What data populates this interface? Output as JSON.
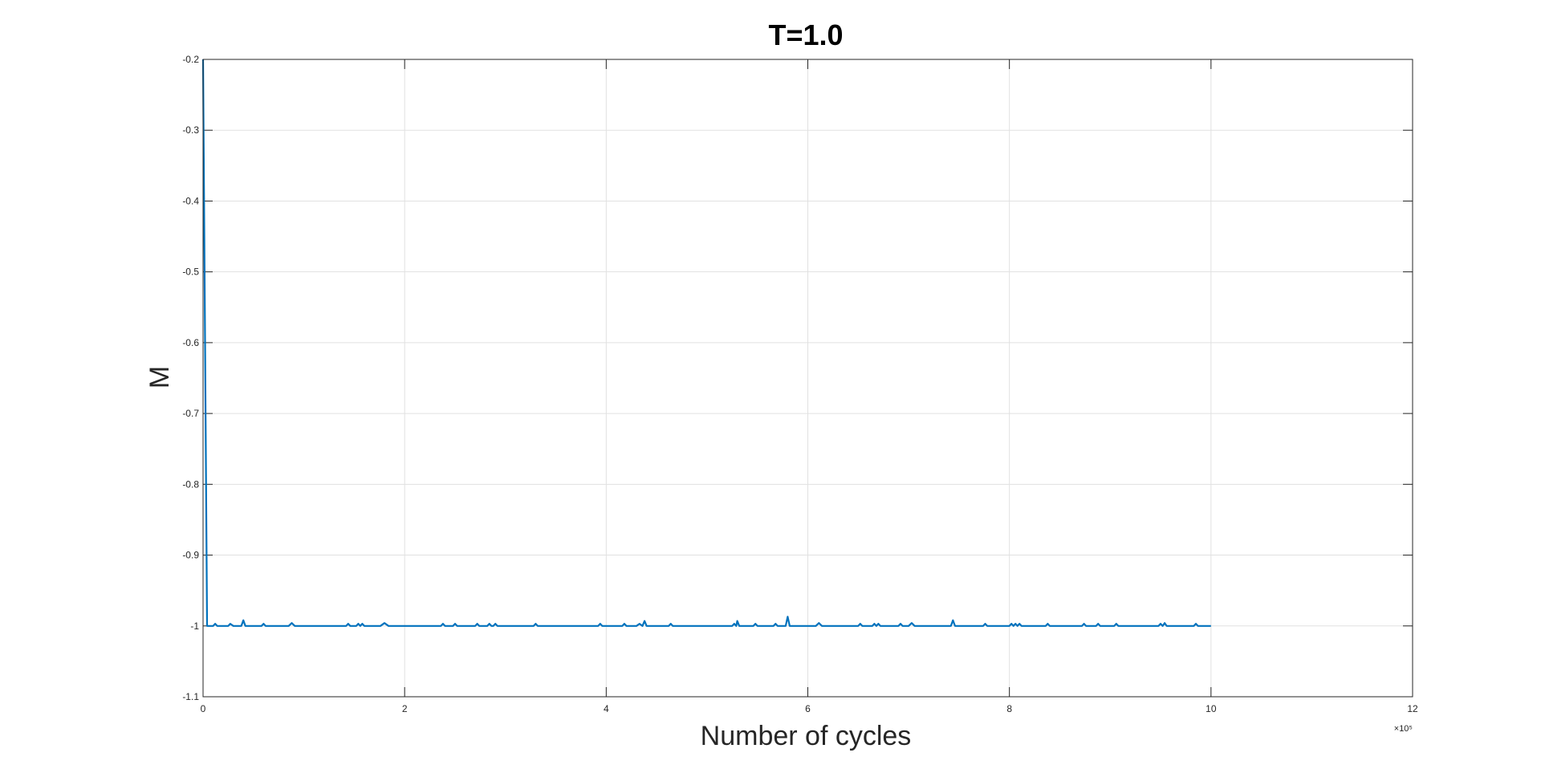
{
  "chart_data": {
    "type": "line",
    "title": "T=1.0",
    "xlabel": "Number of cycles",
    "ylabel": "M",
    "x_exponent_label": "×10⁵",
    "xlim": [
      0,
      12
    ],
    "ylim": [
      -1.1,
      -0.2
    ],
    "x_ticks": [
      0,
      2,
      4,
      6,
      8,
      10,
      12
    ],
    "x_tick_labels": [
      "0",
      "2",
      "4",
      "6",
      "8",
      "10",
      "12"
    ],
    "y_ticks": [
      -0.2,
      -0.3,
      -0.4,
      -0.5,
      -0.6,
      -0.7,
      -0.8,
      -0.9,
      -1,
      -1.1
    ],
    "y_tick_labels": [
      "-0.2",
      "-0.3",
      "-0.4",
      "-0.5",
      "-0.6",
      "-0.7",
      "-0.8",
      "-0.9",
      "-1",
      "-1.1"
    ],
    "grid": true,
    "color": "#0072BD",
    "series": [
      {
        "x": [
          0,
          0.02,
          0.04,
          0.06,
          0.1,
          0.12,
          0.14,
          0.2,
          0.25,
          0.27,
          0.3,
          0.38,
          0.4,
          0.42,
          0.45,
          0.58,
          0.6,
          0.62,
          0.85,
          0.88,
          0.91,
          1.42,
          1.44,
          1.46,
          1.52,
          1.54,
          1.56,
          1.58,
          1.6,
          1.76,
          1.8,
          1.84,
          2.36,
          2.38,
          2.4,
          2.48,
          2.5,
          2.52,
          2.7,
          2.72,
          2.74,
          2.82,
          2.84,
          2.86,
          2.88,
          2.9,
          2.92,
          3.28,
          3.3,
          3.32,
          3.92,
          3.94,
          3.96,
          4.16,
          4.18,
          4.2,
          4.3,
          4.33,
          4.36,
          4.38,
          4.4,
          4.62,
          4.64,
          4.66,
          5.25,
          5.27,
          5.29,
          5.3,
          5.32,
          5.34,
          5.46,
          5.48,
          5.5,
          5.66,
          5.68,
          5.7,
          5.78,
          5.8,
          5.82,
          6.08,
          6.11,
          6.14,
          6.5,
          6.52,
          6.54,
          6.64,
          6.66,
          6.68,
          6.7,
          6.72,
          6.9,
          6.92,
          6.94,
          7.0,
          7.03,
          7.06,
          7.42,
          7.44,
          7.46,
          7.74,
          7.76,
          7.78,
          8.0,
          8.02,
          8.04,
          8.06,
          8.08,
          8.1,
          8.12,
          8.14,
          8.36,
          8.38,
          8.4,
          8.72,
          8.74,
          8.76,
          8.86,
          8.88,
          8.9,
          9.04,
          9.06,
          9.08,
          9.48,
          9.5,
          9.52,
          9.54,
          9.56,
          9.58,
          9.6,
          9.83,
          9.85,
          9.87,
          10.0
        ],
        "y": [
          -0.2,
          -0.6,
          -1.0,
          -1.0,
          -1.0,
          -0.997,
          -1.0,
          -1.0,
          -1.0,
          -0.997,
          -1.0,
          -1.0,
          -0.992,
          -1.0,
          -1.0,
          -1.0,
          -0.997,
          -1.0,
          -1.0,
          -0.996,
          -1.0,
          -1.0,
          -0.997,
          -1.0,
          -1.0,
          -0.997,
          -1.0,
          -0.997,
          -1.0,
          -1.0,
          -0.996,
          -1.0,
          -1.0,
          -0.997,
          -1.0,
          -1.0,
          -0.997,
          -1.0,
          -1.0,
          -0.997,
          -1.0,
          -1.0,
          -0.997,
          -1.0,
          -1.0,
          -0.997,
          -1.0,
          -1.0,
          -0.997,
          -1.0,
          -1.0,
          -0.997,
          -1.0,
          -1.0,
          -0.997,
          -1.0,
          -1.0,
          -0.997,
          -1.0,
          -0.993,
          -1.0,
          -1.0,
          -0.997,
          -1.0,
          -1.0,
          -0.997,
          -1.0,
          -0.993,
          -1.0,
          -1.0,
          -1.0,
          -0.997,
          -1.0,
          -1.0,
          -0.997,
          -1.0,
          -1.0,
          -0.987,
          -1.0,
          -1.0,
          -0.996,
          -1.0,
          -1.0,
          -0.997,
          -1.0,
          -1.0,
          -0.997,
          -1.0,
          -0.997,
          -1.0,
          -1.0,
          -0.997,
          -1.0,
          -1.0,
          -0.996,
          -1.0,
          -1.0,
          -0.992,
          -1.0,
          -1.0,
          -0.997,
          -1.0,
          -1.0,
          -0.997,
          -1.0,
          -0.997,
          -1.0,
          -0.997,
          -1.0,
          -1.0,
          -1.0,
          -0.997,
          -1.0,
          -1.0,
          -0.997,
          -1.0,
          -1.0,
          -0.997,
          -1.0,
          -1.0,
          -0.997,
          -1.0,
          -1.0,
          -0.997,
          -1.0,
          -0.996,
          -1.0,
          -1.0,
          -1.0,
          -1.0,
          -0.997,
          -1.0,
          -1.0
        ]
      }
    ]
  }
}
